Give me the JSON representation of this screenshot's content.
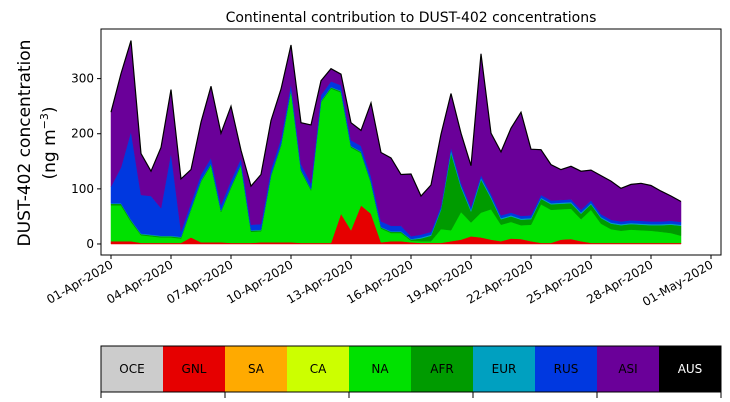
{
  "chart_data": {
    "type": "area",
    "title": "Continental contribution to DUST-402 concentrations",
    "ylabel_line1": "DUST-402 concentration",
    "ylabel_line2_prefix": "(ng m",
    "ylabel_line2_exp": "−3",
    "ylabel_line2_suffix": ")",
    "xlabel": "",
    "x_start": "2020-04-01",
    "x_step_days": 0.5,
    "xlim": [
      "2020-03-31T12:00",
      "2020-05-01T12:00"
    ],
    "ylim": [
      -20,
      390
    ],
    "yticks": [
      0,
      100,
      200,
      300
    ],
    "xtick_labels": [
      "01-Apr-2020",
      "04-Apr-2020",
      "07-Apr-2020",
      "10-Apr-2020",
      "13-Apr-2020",
      "16-Apr-2020",
      "19-Apr-2020",
      "22-Apr-2020",
      "25-Apr-2020",
      "28-Apr-2020",
      "01-May-2020"
    ],
    "xtick_dates": [
      "2020-04-01",
      "2020-04-04",
      "2020-04-07",
      "2020-04-10",
      "2020-04-13",
      "2020-04-16",
      "2020-04-19",
      "2020-04-22",
      "2020-04-25",
      "2020-04-28",
      "2020-05-01"
    ],
    "legend_placement": "bottom",
    "series": [
      {
        "name": "GNL",
        "color": "#e60000",
        "values": [
          5,
          5,
          5,
          2,
          2,
          2,
          2,
          2,
          12,
          3,
          3,
          3,
          2,
          2,
          2,
          3,
          3,
          3,
          3,
          2,
          2,
          2,
          2,
          55,
          25,
          70,
          55,
          3,
          5,
          5,
          3,
          2,
          2,
          2,
          5,
          8,
          14,
          12,
          8,
          5,
          10,
          9,
          5,
          2,
          2,
          8,
          9,
          5,
          2,
          2,
          2,
          2,
          2,
          2,
          2,
          2,
          2,
          2
        ]
      },
      {
        "name": "NA",
        "color": "#00e100",
        "values": [
          65,
          65,
          35,
          14,
          12,
          10,
          10,
          8,
          50,
          110,
          140,
          55,
          100,
          140,
          20,
          20,
          120,
          175,
          275,
          130,
          95,
          255,
          280,
          220,
          150,
          95,
          55,
          25,
          15,
          15,
          3,
          3,
          3,
          25,
          20,
          50,
          25,
          45,
          55,
          30,
          30,
          25,
          30,
          70,
          60,
          55,
          55,
          40,
          60,
          35,
          25,
          22,
          24,
          23,
          22,
          20,
          18,
          13
        ]
      },
      {
        "name": "AFR",
        "color": "#009b00",
        "values": [
          3,
          3,
          3,
          2,
          2,
          2,
          2,
          2,
          2,
          2,
          2,
          2,
          2,
          2,
          2,
          2,
          2,
          2,
          2,
          2,
          2,
          2,
          2,
          2,
          2,
          2,
          2,
          2,
          2,
          2,
          2,
          5,
          10,
          35,
          140,
          45,
          20,
          60,
          20,
          10,
          10,
          10,
          10,
          10,
          10,
          10,
          10,
          10,
          10,
          10,
          10,
          10,
          10,
          10,
          10,
          12,
          15,
          18
        ]
      },
      {
        "name": "EUR",
        "color": "#00a0c0",
        "values": [
          1,
          1,
          1,
          1,
          1,
          1,
          1,
          1,
          1,
          1,
          1,
          1,
          1,
          1,
          1,
          1,
          1,
          1,
          1,
          1,
          1,
          1,
          1,
          1,
          1,
          1,
          1,
          1,
          1,
          1,
          1,
          2,
          2,
          2,
          5,
          3,
          3,
          3,
          3,
          2,
          2,
          2,
          2,
          2,
          2,
          2,
          2,
          2,
          2,
          2,
          2,
          2,
          2,
          2,
          2,
          2,
          2,
          2
        ]
      },
      {
        "name": "RUS",
        "color": "#0038e0",
        "values": [
          30,
          65,
          160,
          70,
          70,
          50,
          150,
          10,
          10,
          10,
          10,
          10,
          10,
          10,
          10,
          10,
          10,
          10,
          10,
          10,
          10,
          10,
          10,
          10,
          10,
          10,
          10,
          10,
          10,
          10,
          5,
          5,
          5,
          5,
          5,
          5,
          5,
          5,
          5,
          5,
          5,
          5,
          5,
          5,
          5,
          5,
          5,
          5,
          5,
          5,
          5,
          5,
          5,
          5,
          5,
          5,
          5,
          5
        ]
      },
      {
        "name": "ASI",
        "color": "#6a0099",
        "values": [
          135,
          170,
          165,
          75,
          45,
          110,
          115,
          95,
          60,
          95,
          130,
          130,
          135,
          15,
          70,
          90,
          88,
          90,
          70,
          75,
          106,
          26,
          23,
          20,
          32,
          28,
          133,
          125,
          123,
          93,
          113,
          70,
          85,
          130,
          98,
          90,
          75,
          220,
          110,
          115,
          153,
          188,
          120,
          82,
          65,
          55,
          60,
          70,
          55,
          70,
          70,
          60,
          65,
          68,
          65,
          55,
          45,
          37
        ]
      }
    ],
    "legend": [
      {
        "name": "OCE",
        "color": "#cccccc",
        "text_color": "#000000"
      },
      {
        "name": "GNL",
        "color": "#e60000",
        "text_color": "#000000"
      },
      {
        "name": "SA",
        "color": "#ffaa00",
        "text_color": "#000000"
      },
      {
        "name": "CA",
        "color": "#ccff00",
        "text_color": "#000000"
      },
      {
        "name": "NA",
        "color": "#00e100",
        "text_color": "#000000"
      },
      {
        "name": "AFR",
        "color": "#009b00",
        "text_color": "#000000"
      },
      {
        "name": "EUR",
        "color": "#00a0c0",
        "text_color": "#000000"
      },
      {
        "name": "RUS",
        "color": "#0038e0",
        "text_color": "#000000"
      },
      {
        "name": "ASI",
        "color": "#6a0099",
        "text_color": "#000000"
      },
      {
        "name": "AUS",
        "color": "#000000",
        "text_color": "#ffffff"
      }
    ]
  }
}
